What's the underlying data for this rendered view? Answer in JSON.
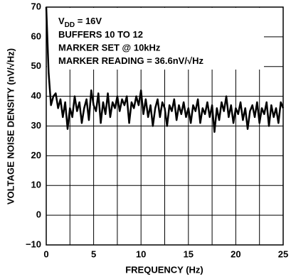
{
  "chart_data": {
    "type": "line",
    "y_label": "VOLTAGE NOISE DENSITY (nV/√Hz)",
    "x_label": "FREQUENCY (Hz)",
    "annotations": [
      {
        "text": "V",
        "subscript": "DD",
        "suffix": " = 16V"
      },
      "BUFFERS 10 TO 12",
      "MARKER SET @ 10kHz",
      "MARKER READING = 36.6nV/√Hz"
    ],
    "x": [
      0,
      0.25,
      0.5,
      0.75,
      1,
      1.25,
      1.5,
      1.75,
      2,
      2.25,
      2.5,
      2.75,
      3,
      3.25,
      3.5,
      3.75,
      4,
      4.25,
      4.5,
      4.75,
      5,
      5.25,
      5.5,
      5.75,
      6,
      6.25,
      6.5,
      6.75,
      7,
      7.25,
      7.5,
      7.75,
      8,
      8.25,
      8.5,
      8.75,
      9,
      9.25,
      9.5,
      9.75,
      10,
      10.25,
      10.5,
      10.75,
      11,
      11.25,
      11.5,
      11.75,
      12,
      12.25,
      12.5,
      12.75,
      13,
      13.25,
      13.5,
      13.75,
      14,
      14.25,
      14.5,
      14.75,
      15,
      15.25,
      15.5,
      15.75,
      16,
      16.25,
      16.5,
      16.75,
      17,
      17.25,
      17.5,
      17.75,
      18,
      18.25,
      18.5,
      18.75,
      19,
      19.25,
      19.5,
      19.75,
      20,
      20.25,
      20.5,
      20.75,
      21,
      21.25,
      21.5,
      21.75,
      22,
      22.25,
      22.5,
      22.75,
      23,
      23.25,
      23.5,
      23.75,
      24,
      24.25,
      24.5,
      24.75,
      25
    ],
    "values": [
      70,
      48,
      37,
      40,
      41,
      36,
      39,
      33,
      38,
      29,
      36,
      33,
      40,
      35,
      38,
      31,
      36,
      39,
      32,
      42,
      37,
      35,
      41,
      31,
      38,
      34,
      41,
      33,
      38,
      36,
      40,
      35,
      39,
      37,
      40,
      31,
      38,
      36,
      40,
      37,
      42,
      34,
      39,
      33,
      37,
      30,
      36,
      39,
      33,
      38,
      36,
      30,
      37,
      35,
      39,
      32,
      37,
      34,
      38,
      33,
      36,
      31,
      37,
      35,
      39,
      31,
      36,
      34,
      38,
      33,
      37,
      28,
      36,
      32,
      38,
      35,
      40,
      33,
      37,
      31,
      36,
      34,
      38,
      32,
      36,
      29,
      35,
      37,
      33,
      38,
      31,
      36,
      34,
      38,
      30,
      37,
      33,
      36,
      31,
      38,
      36
    ],
    "color": "#000000",
    "xlim": [
      0,
      25
    ],
    "xticks": [
      0,
      5,
      10,
      15,
      20,
      25
    ],
    "xgrid": [
      0,
      2.5,
      5,
      7.5,
      10,
      12.5,
      15,
      17.5,
      20,
      22.5,
      25
    ],
    "ylim": [
      -10,
      70
    ],
    "yticks": [
      {
        "value": -10,
        "label": "−10"
      },
      0,
      10,
      20,
      30,
      40,
      50,
      60,
      70
    ],
    "grid": true
  }
}
